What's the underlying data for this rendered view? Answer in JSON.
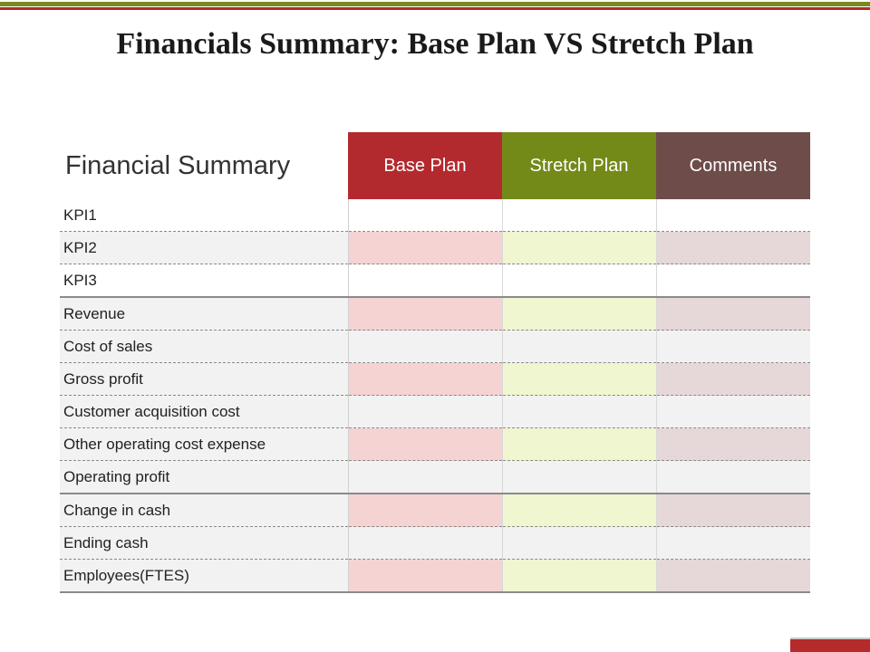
{
  "slide": {
    "title": "Financials Summary: Base Plan VS Stretch Plan"
  },
  "table": {
    "corner_label": "Financial Summary",
    "columns": [
      "Base Plan",
      "Stretch Plan",
      "Comments"
    ],
    "rows": [
      {
        "label": "KPI1",
        "base": "",
        "stretch": "",
        "comments": ""
      },
      {
        "label": "KPI2",
        "base": "",
        "stretch": "",
        "comments": ""
      },
      {
        "label": "KPI3",
        "base": "",
        "stretch": "",
        "comments": ""
      },
      {
        "label": "Revenue",
        "base": "",
        "stretch": "",
        "comments": ""
      },
      {
        "label": "Cost of sales",
        "base": "",
        "stretch": "",
        "comments": ""
      },
      {
        "label": "Gross profit",
        "base": "",
        "stretch": "",
        "comments": ""
      },
      {
        "label": "Customer acquisition cost",
        "base": "",
        "stretch": "",
        "comments": ""
      },
      {
        "label": "Other operating cost expense",
        "base": "",
        "stretch": "",
        "comments": ""
      },
      {
        "label": "Operating profit",
        "base": "",
        "stretch": "",
        "comments": ""
      },
      {
        "label": "Change in cash",
        "base": "",
        "stretch": "",
        "comments": ""
      },
      {
        "label": "Ending cash",
        "base": "",
        "stretch": "",
        "comments": ""
      },
      {
        "label": "Employees(FTES)",
        "base": "",
        "stretch": "",
        "comments": ""
      }
    ]
  },
  "colors": {
    "base_plan": "#b32a2e",
    "stretch_plan": "#738a19",
    "comments": "#6d4c4a",
    "accent_red": "#b52a2a",
    "accent_olive": "#7a8a1a"
  }
}
